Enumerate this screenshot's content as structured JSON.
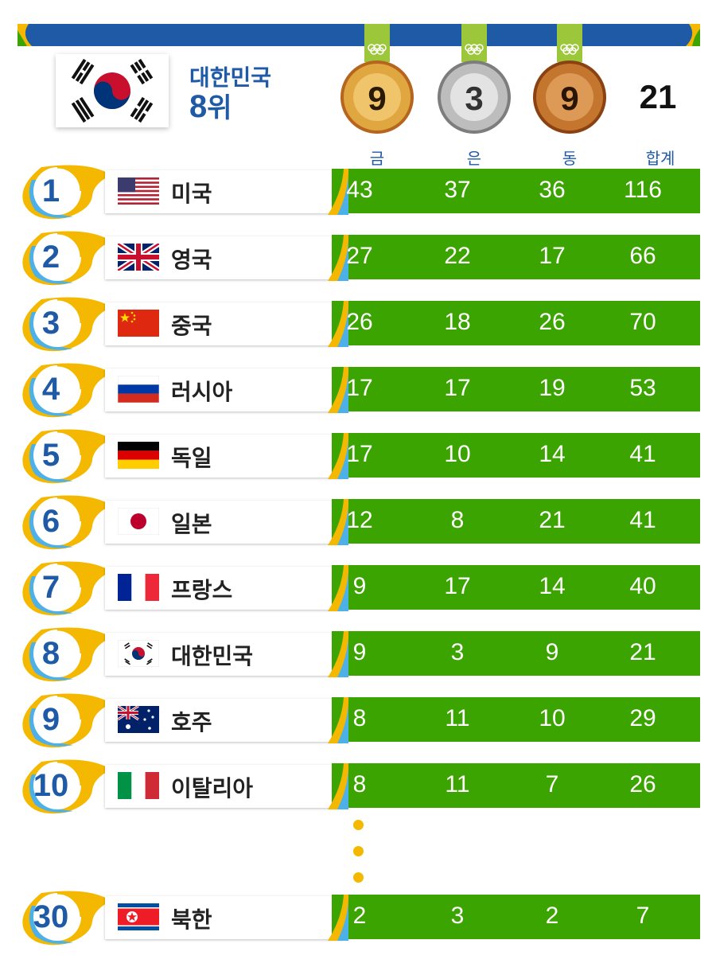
{
  "header": {
    "country": "대한민국",
    "rank_number": "8",
    "rank_suffix": "위",
    "medals": {
      "gold": "9",
      "silver": "3",
      "bronze": "9",
      "total": "21"
    },
    "columns": {
      "gold": "금",
      "silver": "은",
      "bronze": "동",
      "total": "합계"
    }
  },
  "colors": {
    "blue": "#1f5aa6",
    "green": "#3ba400",
    "yellow": "#f5b800",
    "lightblue": "#4db1e8",
    "gold": "#c98a2c",
    "silver": "#a9a9a9",
    "bronze": "#b86a2e"
  },
  "rows": [
    {
      "rank": "1",
      "name": "미국",
      "flag": "us-flag-icon",
      "gold": "43",
      "silver": "37",
      "bronze": "36",
      "total": "116"
    },
    {
      "rank": "2",
      "name": "영국",
      "flag": "uk-flag-icon",
      "gold": "27",
      "silver": "22",
      "bronze": "17",
      "total": "66"
    },
    {
      "rank": "3",
      "name": "중국",
      "flag": "china-flag-icon",
      "gold": "26",
      "silver": "18",
      "bronze": "26",
      "total": "70"
    },
    {
      "rank": "4",
      "name": "러시아",
      "flag": "russia-flag-icon",
      "gold": "17",
      "silver": "17",
      "bronze": "19",
      "total": "53"
    },
    {
      "rank": "5",
      "name": "독일",
      "flag": "germany-flag-icon",
      "gold": "17",
      "silver": "10",
      "bronze": "14",
      "total": "41"
    },
    {
      "rank": "6",
      "name": "일본",
      "flag": "japan-flag-icon",
      "gold": "12",
      "silver": "8",
      "bronze": "21",
      "total": "41"
    },
    {
      "rank": "7",
      "name": "프랑스",
      "flag": "france-flag-icon",
      "gold": "9",
      "silver": "17",
      "bronze": "14",
      "total": "40"
    },
    {
      "rank": "8",
      "name": "대한민국",
      "flag": "korea-flag-icon",
      "gold": "9",
      "silver": "3",
      "bronze": "9",
      "total": "21"
    },
    {
      "rank": "9",
      "name": "호주",
      "flag": "australia-flag-icon",
      "gold": "8",
      "silver": "11",
      "bronze": "10",
      "total": "29"
    },
    {
      "rank": "10",
      "name": "이탈리아",
      "flag": "italy-flag-icon",
      "gold": "8",
      "silver": "11",
      "bronze": "7",
      "total": "26"
    },
    {
      "rank": "30",
      "name": "북한",
      "flag": "north-korea-flag-icon",
      "gold": "2",
      "silver": "3",
      "bronze": "2",
      "total": "7"
    }
  ]
}
